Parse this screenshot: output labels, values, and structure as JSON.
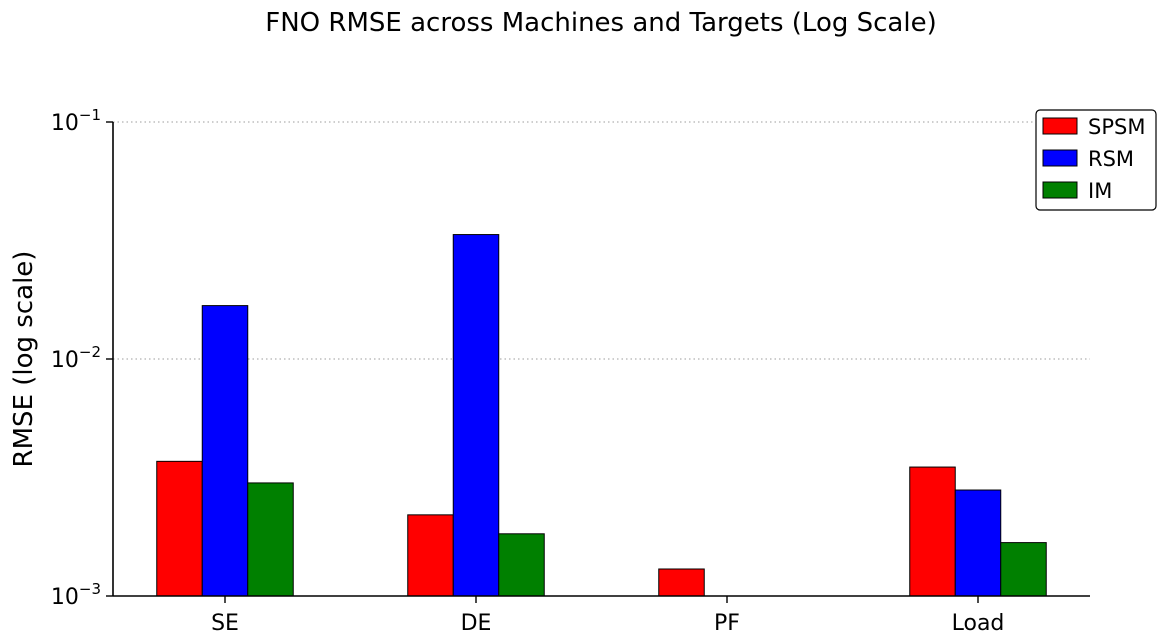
{
  "chart_data": {
    "type": "bar",
    "title": "FNO RMSE across Machines and Targets (Log Scale)",
    "xlabel": "",
    "ylabel": "RMSE (log scale)",
    "yscale": "log",
    "ylim": [
      0.001,
      0.1
    ],
    "yticks": [
      {
        "value": 0.001,
        "base": "10",
        "exp": "−3"
      },
      {
        "value": 0.01,
        "base": "10",
        "exp": "−2"
      },
      {
        "value": 0.1,
        "base": "10",
        "exp": "−1"
      }
    ],
    "grid": "horizontal dotted at major ticks",
    "legend_position": "top-right",
    "categories": [
      "SE",
      "DE",
      "PF",
      "Load"
    ],
    "series": [
      {
        "name": "SPSM",
        "color": "#ff0000",
        "values": [
          0.0037,
          0.0022,
          0.0013,
          0.0035
        ]
      },
      {
        "name": "RSM",
        "color": "#0000ff",
        "values": [
          0.0168,
          0.0335,
          null,
          0.0028
        ]
      },
      {
        "name": "IM",
        "color": "#008000",
        "values": [
          0.003,
          0.00183,
          null,
          0.00168
        ]
      }
    ]
  }
}
